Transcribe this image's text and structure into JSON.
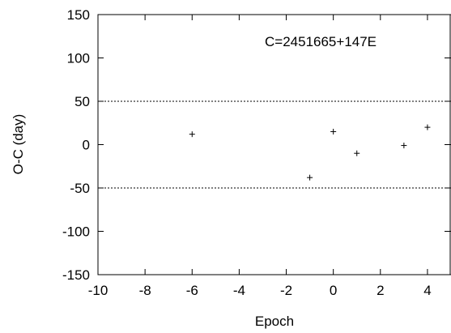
{
  "chart_data": {
    "type": "scatter",
    "title": "",
    "xlabel": "Epoch",
    "ylabel": "O-C (day)",
    "xlim": [
      -10,
      5
    ],
    "ylim": [
      -150,
      150
    ],
    "xticks": [
      -10,
      -8,
      -6,
      -4,
      -2,
      0,
      2,
      4
    ],
    "yticks": [
      -150,
      -100,
      -50,
      0,
      50,
      100,
      150
    ],
    "reference_lines": [
      50,
      -50
    ],
    "annotation": "C=2451665+147E",
    "grid": false,
    "series": [
      {
        "marker": "+",
        "points": [
          {
            "x": -6,
            "y": 12
          },
          {
            "x": -1,
            "y": -38
          },
          {
            "x": 0,
            "y": 15
          },
          {
            "x": 1,
            "y": -10
          },
          {
            "x": 3,
            "y": -1
          },
          {
            "x": 4,
            "y": 20
          }
        ]
      }
    ]
  }
}
